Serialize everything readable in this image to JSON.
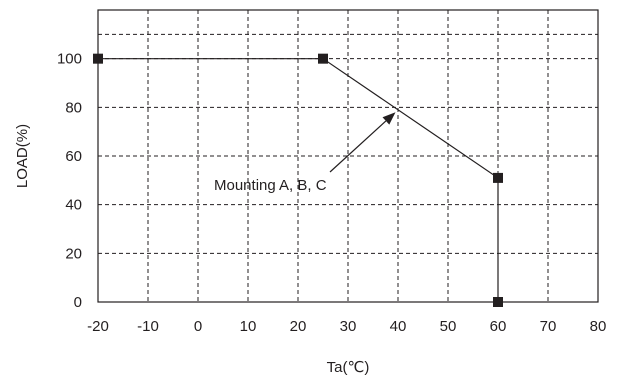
{
  "chart_data": {
    "type": "line",
    "xlabel": "Ta(℃)",
    "ylabel": "LOAD(%)",
    "xlim": [
      -20,
      80
    ],
    "ylim": [
      0,
      120
    ],
    "xticks": [
      -20,
      -10,
      0,
      10,
      20,
      30,
      40,
      50,
      60,
      70,
      80
    ],
    "yticks": [
      0,
      20,
      40,
      60,
      80,
      100
    ],
    "grid": true,
    "grid_style": "dashed",
    "series": [
      {
        "x": [
          -20,
          25,
          60,
          60
        ],
        "y": [
          100,
          100,
          51,
          0
        ],
        "marker": "square",
        "color": "#231f20"
      }
    ],
    "annotations": [
      {
        "text": "Mounting A, B, C",
        "arrow_to": {
          "x": 39.5,
          "y": 78
        }
      }
    ]
  }
}
